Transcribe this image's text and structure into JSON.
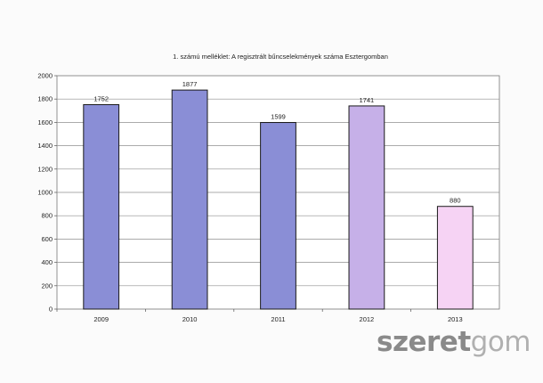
{
  "chart_data": {
    "type": "bar",
    "title": "1. számú melléklet: A regisztrált bűncselekmények száma Esztergomban",
    "categories": [
      "2009",
      "2010",
      "2011",
      "2012",
      "2013"
    ],
    "values": [
      1752,
      1877,
      1599,
      1741,
      880
    ],
    "data_labels": [
      "1752",
      "1877",
      "1599",
      "1741",
      "880"
    ],
    "ylim": [
      0,
      2000
    ],
    "yticks": [
      0,
      200,
      400,
      600,
      800,
      1000,
      1200,
      1400,
      1600,
      1800,
      2000
    ],
    "xlabel": "",
    "ylabel": "",
    "grid": true,
    "legend": "none",
    "colors": [
      "#8a8ed6",
      "#8a8ed6",
      "#8a8ed6",
      "#c6b0e8",
      "#f6d3f4"
    ]
  },
  "watermark": {
    "bold": "szeret",
    "light": "gom"
  }
}
